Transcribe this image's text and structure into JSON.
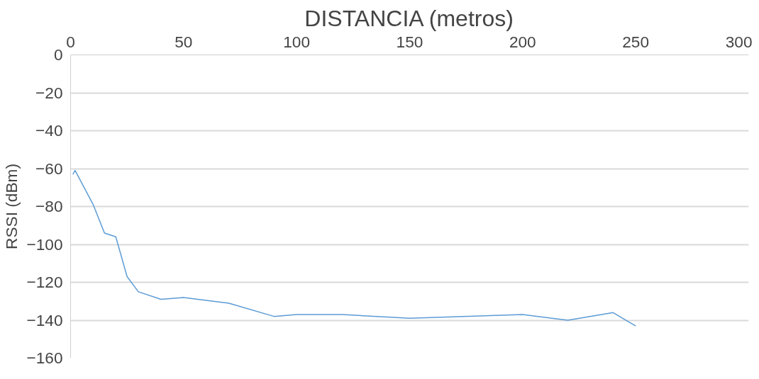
{
  "chart_data": {
    "type": "line",
    "title": "DISTANCIA (metros)",
    "ylabel": "RSSI (dBm)",
    "series": [
      {
        "color": "#5b9bd5",
        "x": [
          1,
          2,
          10,
          15,
          20,
          25,
          30,
          40,
          50,
          70,
          90,
          100,
          120,
          150,
          200,
          220,
          240,
          250
        ],
        "values": [
          -63,
          -61,
          -79,
          -94,
          -96,
          -117,
          -125,
          -129,
          -128,
          -131,
          -138,
          -137,
          -137,
          -139,
          -137,
          -140,
          -136,
          -143
        ]
      }
    ],
    "xlim": [
      0,
      300
    ],
    "xticks": [
      0,
      50,
      100,
      150,
      200,
      250,
      300
    ],
    "ylim": [
      -160,
      0
    ],
    "yticks": [
      -160,
      -140,
      -120,
      -100,
      -80,
      -60,
      -40,
      -20,
      0
    ],
    "grid": "y",
    "marker": "none",
    "line_style": "solid"
  }
}
